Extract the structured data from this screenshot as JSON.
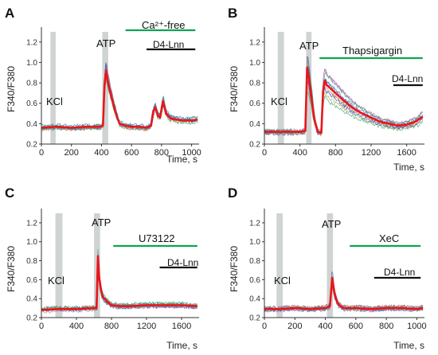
{
  "colors": {
    "mean": "#e8161b",
    "green_bar": "#10a351",
    "black_bar": "#111111",
    "stim_box": "#cfd3d2",
    "traces": [
      "#3b59c6",
      "#2aa877",
      "#8a5bb3",
      "#b9a14a",
      "#e56fa6",
      "#2f6fb3",
      "#8b8b8b",
      "#d4773a"
    ]
  },
  "chart_data": [
    {
      "panel": "A",
      "type": "line",
      "ylabel": "F340/F380",
      "xlabel": "Time, s",
      "xlim": [
        0,
        1050
      ],
      "ylim": [
        0.2,
        1.3
      ],
      "xticks": [
        0,
        200,
        400,
        600,
        800,
        1000
      ],
      "yticks": [
        0.2,
        0.4,
        0.6,
        0.8,
        1.0,
        1.2
      ],
      "ytick_labels": [
        "0.2",
        "0.4",
        "0.6",
        "0.8",
        "1.0",
        "1.2"
      ],
      "stimuli": [
        {
          "label": "KCl",
          "x_start": 60,
          "x_end": 95
        },
        {
          "label": "ATP",
          "x_start": 405,
          "x_end": 445
        }
      ],
      "bars": [
        {
          "label": "Ca2+-free",
          "x_start": 560,
          "x_end": 1025,
          "color": "green"
        },
        {
          "label": "D4-Lnn",
          "x_start": 700,
          "x_end": 1025,
          "color": "black"
        }
      ],
      "series": [
        {
          "x": [
            0,
            100,
            200,
            300,
            390,
            410,
            420,
            430,
            440,
            460,
            480,
            500,
            520,
            560,
            600,
            650,
            700,
            730,
            745,
            760,
            775,
            790,
            810,
            830,
            860,
            900,
            950,
            1000,
            1040
          ],
          "y": [
            0.36,
            0.37,
            0.36,
            0.37,
            0.37,
            0.38,
            0.78,
            0.92,
            0.82,
            0.7,
            0.58,
            0.48,
            0.4,
            0.38,
            0.37,
            0.37,
            0.36,
            0.38,
            0.52,
            0.56,
            0.48,
            0.46,
            0.62,
            0.5,
            0.45,
            0.44,
            0.43,
            0.43,
            0.44
          ]
        }
      ]
    },
    {
      "panel": "B",
      "type": "line",
      "ylabel": "F340/F380",
      "xlabel": "Time, s",
      "xlim": [
        0,
        1800
      ],
      "ylim": [
        0.2,
        1.3
      ],
      "xticks": [
        0,
        400,
        800,
        1200,
        1600
      ],
      "yticks": [
        0.2,
        0.4,
        0.6,
        0.8,
        1.0,
        1.2
      ],
      "ytick_labels": [
        "0.2",
        "0.4",
        "0.6",
        "0.8",
        "1.0",
        "1.2"
      ],
      "stimuli": [
        {
          "label": "KCl",
          "x_start": 150,
          "x_end": 220
        },
        {
          "label": "ATP",
          "x_start": 470,
          "x_end": 530
        }
      ],
      "bars": [
        {
          "label": "Thapsigargin",
          "x_start": 620,
          "x_end": 1780,
          "color": "green"
        },
        {
          "label": "D4-Lnn",
          "x_start": 1450,
          "x_end": 1780,
          "color": "black"
        }
      ],
      "series": [
        {
          "x": [
            0,
            200,
            400,
            460,
            480,
            500,
            520,
            560,
            600,
            640,
            660,
            680,
            700,
            800,
            900,
            1000,
            1100,
            1200,
            1300,
            1400,
            1500,
            1600,
            1700,
            1780
          ],
          "y": [
            0.32,
            0.32,
            0.32,
            0.33,
            0.95,
            0.85,
            0.72,
            0.45,
            0.32,
            0.31,
            0.72,
            0.82,
            0.78,
            0.7,
            0.62,
            0.55,
            0.5,
            0.46,
            0.42,
            0.4,
            0.38,
            0.39,
            0.42,
            0.47
          ]
        }
      ]
    },
    {
      "panel": "C",
      "type": "line",
      "ylabel": "F340/F380",
      "xlabel": "Time, s",
      "xlim": [
        0,
        1800
      ],
      "ylim": [
        0.2,
        1.3
      ],
      "xticks": [
        0,
        400,
        800,
        1200,
        1600
      ],
      "yticks": [
        0.2,
        0.4,
        0.6,
        0.8,
        1.0,
        1.2
      ],
      "ytick_labels": [
        "0.2",
        "0.4",
        "0.6",
        "0.8",
        "1.0",
        "1.2"
      ],
      "stimuli": [
        {
          "label": "KCl",
          "x_start": 160,
          "x_end": 240
        },
        {
          "label": "ATP",
          "x_start": 600,
          "x_end": 670
        }
      ],
      "bars": [
        {
          "label": "U73122",
          "x_start": 820,
          "x_end": 1780,
          "color": "green"
        },
        {
          "label": "D4-Lnn",
          "x_start": 1350,
          "x_end": 1780,
          "color": "black"
        }
      ],
      "series": [
        {
          "x": [
            0,
            200,
            400,
            600,
            630,
            645,
            660,
            680,
            700,
            750,
            800,
            900,
            1000,
            1200,
            1400,
            1600,
            1780
          ],
          "y": [
            0.28,
            0.29,
            0.29,
            0.3,
            0.3,
            0.85,
            0.62,
            0.5,
            0.42,
            0.37,
            0.33,
            0.32,
            0.32,
            0.33,
            0.33,
            0.33,
            0.32
          ]
        }
      ]
    },
    {
      "panel": "D",
      "type": "line",
      "ylabel": "F340/F380",
      "xlabel": "Time, s",
      "xlim": [
        0,
        1050
      ],
      "ylim": [
        0.2,
        1.3
      ],
      "xticks": [
        0,
        200,
        400,
        600,
        800,
        1000
      ],
      "yticks": [
        0.2,
        0.4,
        0.6,
        0.8,
        1.0,
        1.2
      ],
      "ytick_labels": [
        "0.2",
        "0.4",
        "0.6",
        "0.8",
        "1.0",
        "1.2"
      ],
      "stimuli": [
        {
          "label": "KCl",
          "x_start": 80,
          "x_end": 120
        },
        {
          "label": "ATP",
          "x_start": 410,
          "x_end": 450
        }
      ],
      "bars": [
        {
          "label": "XeC",
          "x_start": 560,
          "x_end": 1025,
          "color": "green"
        },
        {
          "label": "D4-Lnn",
          "x_start": 720,
          "x_end": 1025,
          "color": "black"
        }
      ],
      "series": [
        {
          "x": [
            0,
            100,
            200,
            300,
            400,
            430,
            445,
            460,
            480,
            500,
            520,
            600,
            700,
            800,
            900,
            1000,
            1040
          ],
          "y": [
            0.29,
            0.29,
            0.3,
            0.29,
            0.3,
            0.32,
            0.62,
            0.45,
            0.35,
            0.32,
            0.3,
            0.3,
            0.29,
            0.3,
            0.3,
            0.29,
            0.3
          ]
        }
      ]
    }
  ],
  "panels": [
    {
      "letter": "A",
      "stim_labels": [
        "KCl",
        "ATP"
      ],
      "bar_labels": [
        "Ca²⁺-free",
        "D4-Lnn"
      ]
    },
    {
      "letter": "B",
      "stim_labels": [
        "KCl",
        "ATP"
      ],
      "bar_labels": [
        "Thapsigargin",
        "D4-Lnn"
      ]
    },
    {
      "letter": "C",
      "stim_labels": [
        "KCl",
        "ATP"
      ],
      "bar_labels": [
        "U73122",
        "D4-Lnn"
      ]
    },
    {
      "letter": "D",
      "stim_labels": [
        "KCl",
        "ATP"
      ],
      "bar_labels": [
        "XeC",
        "D4-Lnn"
      ]
    }
  ]
}
